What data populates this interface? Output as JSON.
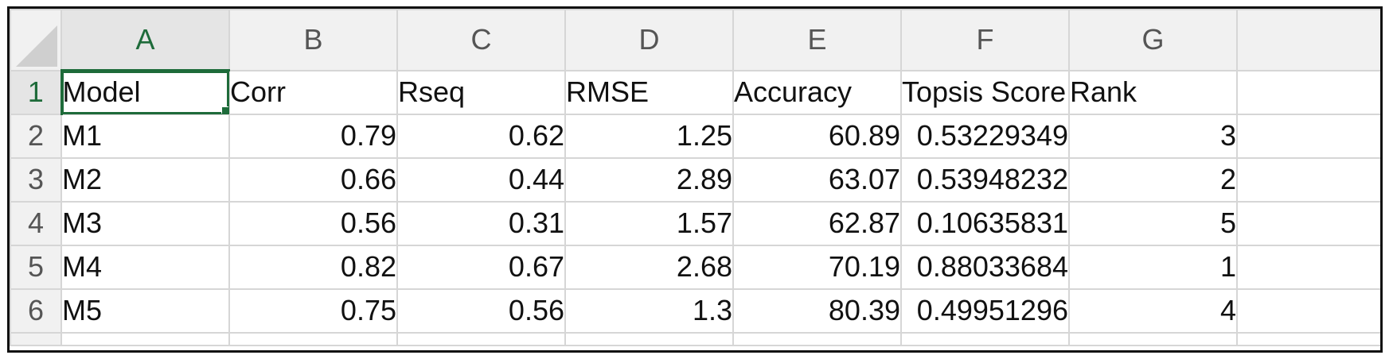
{
  "columns": [
    "A",
    "B",
    "C",
    "D",
    "E",
    "F",
    "G"
  ],
  "rows": [
    "1",
    "2",
    "3",
    "4",
    "5",
    "6"
  ],
  "header_cells": [
    "Model",
    "Corr",
    "Rseq",
    "RMSE",
    "Accuracy",
    "Topsis Score",
    "Rank"
  ],
  "data": [
    [
      "M1",
      "0.79",
      "0.62",
      "1.25",
      "60.89",
      "0.53229349",
      "3"
    ],
    [
      "M2",
      "0.66",
      "0.44",
      "2.89",
      "63.07",
      "0.53948232",
      "2"
    ],
    [
      "M3",
      "0.56",
      "0.31",
      "1.57",
      "62.87",
      "0.10635831",
      "5"
    ],
    [
      "M4",
      "0.82",
      "0.67",
      "2.68",
      "70.19",
      "0.88033684",
      "1"
    ],
    [
      "M5",
      "0.75",
      "0.56",
      "1.3",
      "80.39",
      "0.49951296",
      "4"
    ]
  ],
  "selected_cell": "A1",
  "colors": {
    "selection_accent": "#1e6b3a",
    "header_bg": "#f1f1f1",
    "gridline": "#d6d6d6"
  }
}
